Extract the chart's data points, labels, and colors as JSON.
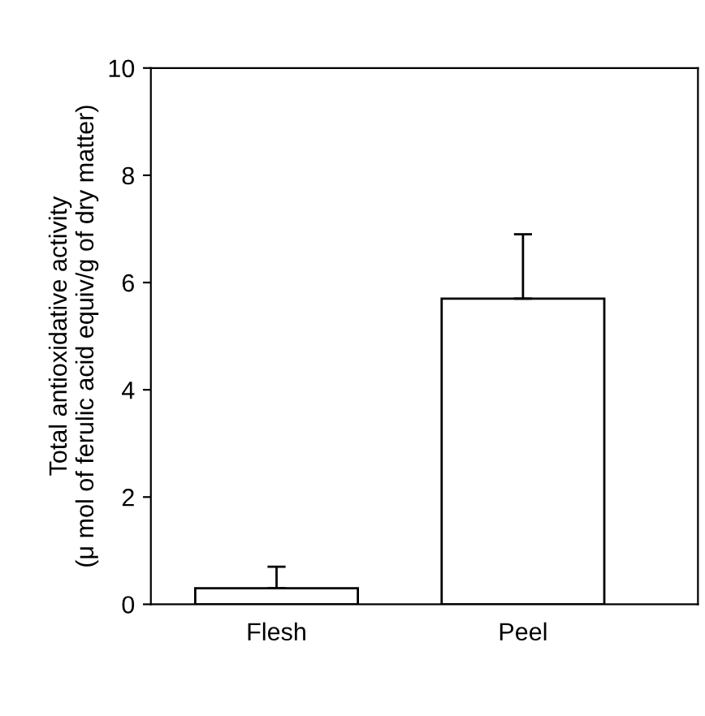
{
  "chart_data": {
    "type": "bar",
    "ylabel": "Total antioxidative activity\n(μ mol of ferulic acid equiv/g of dry matter)",
    "categories": [
      "Flesh",
      "Peel"
    ],
    "values": [
      0.3,
      5.7
    ],
    "errors": [
      [
        0.3,
        0.7
      ],
      [
        5.7,
        6.9
      ]
    ],
    "color": "#ffffff",
    "ylim": [
      0,
      10
    ],
    "yticks": [
      0,
      2,
      4,
      6,
      8,
      10
    ],
    "grid": false
  }
}
